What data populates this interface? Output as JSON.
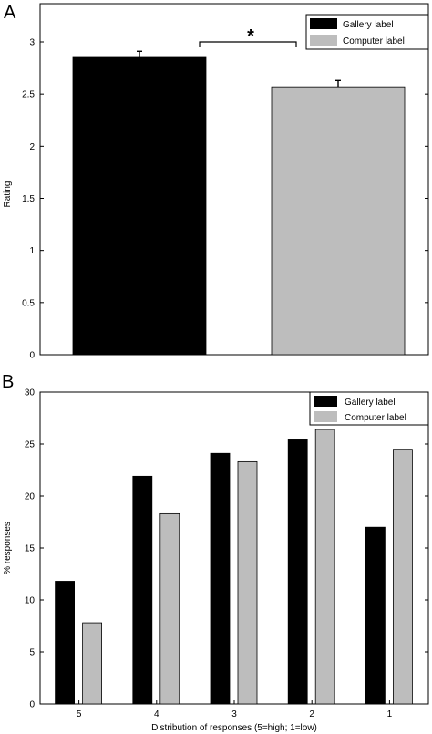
{
  "chart_data": [
    {
      "panel_label": "A",
      "type": "bar",
      "categories": [
        "Gallery label",
        "Computer label"
      ],
      "values": [
        2.86,
        2.57
      ],
      "errors": [
        0.05,
        0.06
      ],
      "ylabel": "Rating",
      "xlabel": "",
      "ylim": [
        0,
        3.0
      ],
      "yticks": [
        "0",
        "0.5",
        "1",
        "1.5",
        "2",
        "2.5",
        "3"
      ],
      "ytick_values": [
        0,
        0.5,
        1,
        1.5,
        2,
        2.5,
        3
      ],
      "legend": [
        "Gallery label",
        "Computer label"
      ],
      "legend_position": "top-right",
      "significance_marker": "*",
      "colors": [
        "#000000",
        "#bdbdbd"
      ]
    },
    {
      "panel_label": "B",
      "type": "bar",
      "categories": [
        "5",
        "4",
        "3",
        "2",
        "1"
      ],
      "series": [
        {
          "name": "Gallery label",
          "values": [
            11.8,
            21.9,
            24.1,
            25.4,
            17.0
          ],
          "color": "#000000"
        },
        {
          "name": "Computer label",
          "values": [
            7.8,
            18.3,
            23.3,
            26.4,
            24.5
          ],
          "color": "#bdbdbd"
        }
      ],
      "ylabel": "% responses",
      "xlabel": "Distribution of responses (5=high; 1=low)",
      "ylim": [
        0,
        30
      ],
      "yticks": [
        "0",
        "5",
        "10",
        "15",
        "20",
        "25",
        "30"
      ],
      "ytick_values": [
        0,
        5,
        10,
        15,
        20,
        25,
        30
      ],
      "legend_position": "top-right"
    }
  ]
}
